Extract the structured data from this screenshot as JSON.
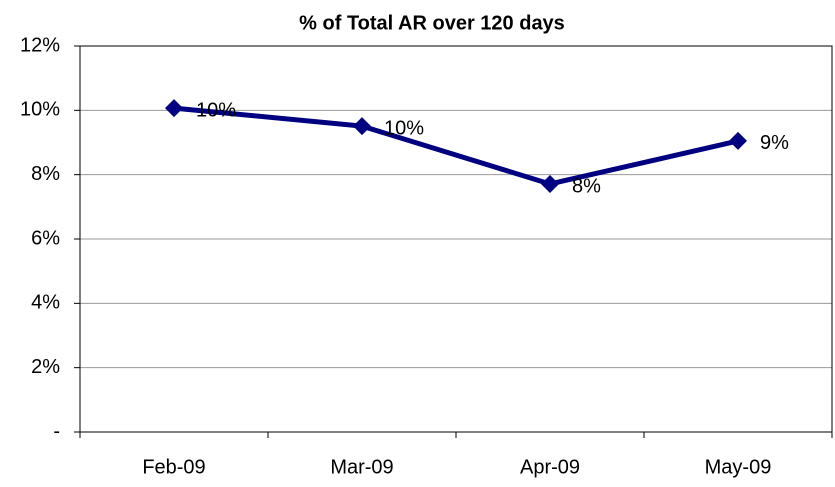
{
  "chart_data": {
    "type": "line",
    "title": "% of Total AR over 120 days",
    "categories": [
      "Feb-09",
      "Mar-09",
      "Apr-09",
      "May-09"
    ],
    "series": [
      {
        "color": "#000080",
        "values": [
          10.07,
          9.51,
          7.71,
          9.05
        ],
        "value_labels": [
          "10%",
          "10%",
          "8%",
          "9%"
        ]
      }
    ],
    "ylim": [
      0,
      12
    ],
    "yticks": [
      {
        "value": 0,
        "label": "-"
      },
      {
        "value": 2,
        "label": "2%"
      },
      {
        "value": 4,
        "label": "4%"
      },
      {
        "value": 6,
        "label": "6%"
      },
      {
        "value": 8,
        "label": "8%"
      },
      {
        "value": 10,
        "label": "10%"
      },
      {
        "value": 12,
        "label": "12%"
      }
    ],
    "grid": true
  }
}
